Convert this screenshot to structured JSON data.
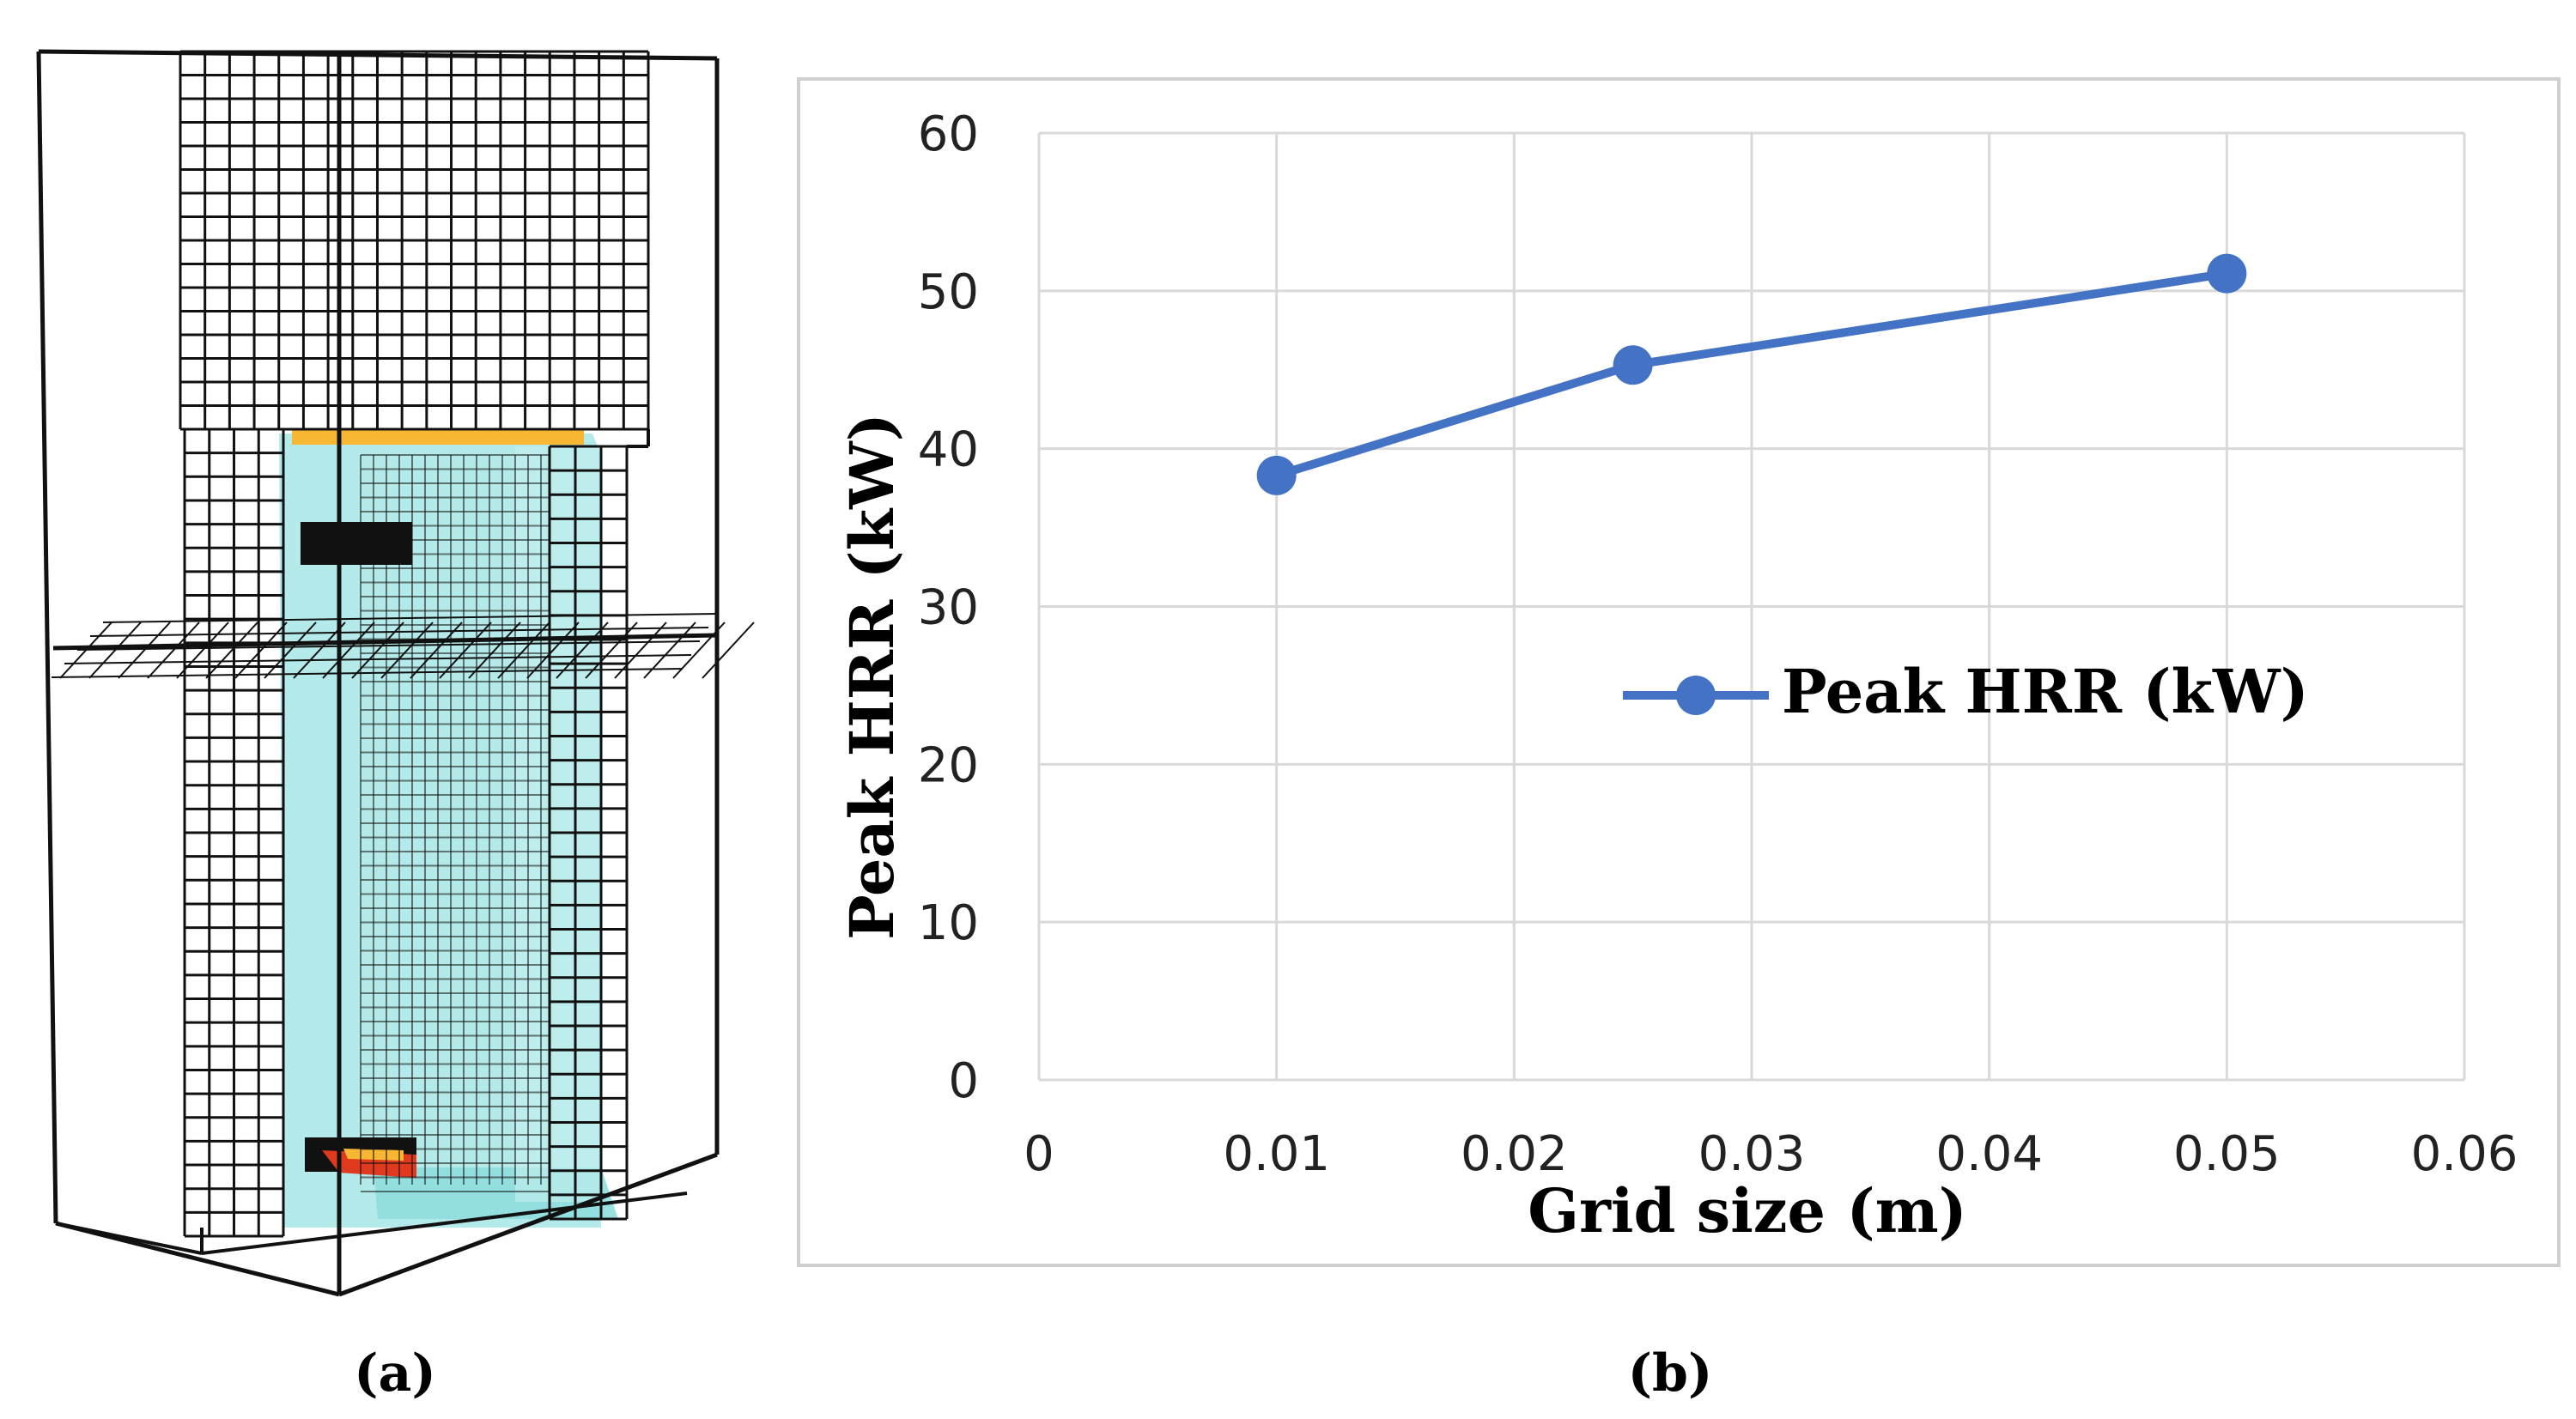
{
  "panel_a": {
    "caption": "(a)",
    "description_icon": "fds-mesh-model-icon"
  },
  "panel_b": {
    "caption": "(b)"
  },
  "colors": {
    "series": "#4472c4",
    "grid": "#d9d9d9",
    "frame": "#d0d0d0",
    "smoke": "#a8e6e6",
    "fire_hot": "#e03a1e",
    "fire_warm": "#f7b733"
  },
  "chart_data": {
    "type": "line",
    "title": "",
    "xlabel": "Grid size (m)",
    "ylabel": "Peak HRR (kW)",
    "xlim": [
      0,
      0.06
    ],
    "ylim": [
      0,
      60
    ],
    "xticks": [
      0,
      0.01,
      0.02,
      0.03,
      0.04,
      0.05,
      0.06
    ],
    "xtick_labels": [
      "0",
      "0.01",
      "0.02",
      "0.03",
      "0.04",
      "0.05",
      "0.06"
    ],
    "yticks": [
      0,
      10,
      20,
      30,
      40,
      50,
      60
    ],
    "ytick_labels": [
      "0",
      "10",
      "20",
      "30",
      "40",
      "50",
      "60"
    ],
    "grid": true,
    "legend_position": "center-right",
    "series": [
      {
        "name": "Peak HRR (kW)",
        "x": [
          0.01,
          0.025,
          0.05
        ],
        "values": [
          38.3,
          45.3,
          51.1
        ]
      }
    ]
  }
}
